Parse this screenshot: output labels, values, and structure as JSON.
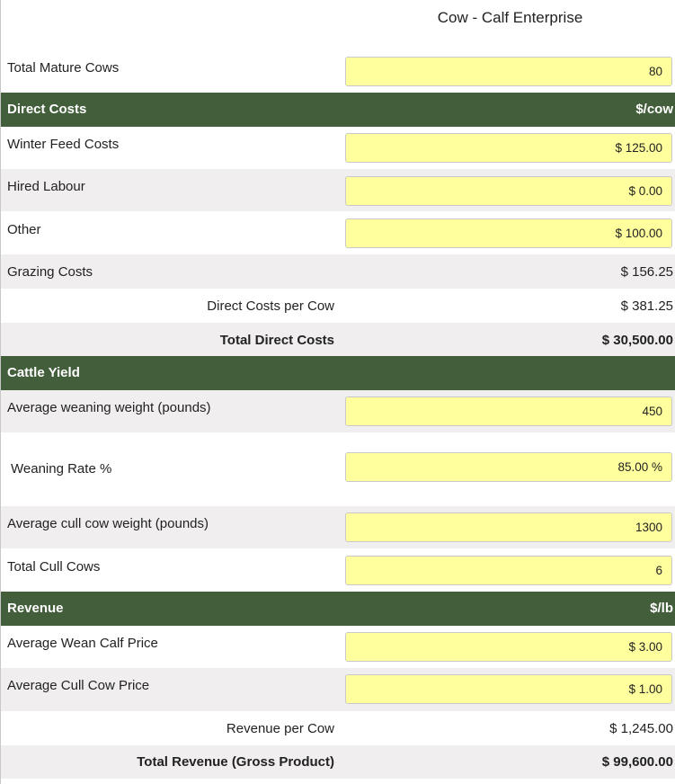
{
  "title": "Cow - Calf Enterprise",
  "total_mature_cows": {
    "label": "Total Mature Cows",
    "value": "80"
  },
  "direct_costs": {
    "header": "Direct Costs",
    "unit": "$/cow",
    "winter_feed": {
      "label": "Winter Feed Costs",
      "value": "$ 125.00"
    },
    "hired_labour": {
      "label": "Hired Labour",
      "value": "$ 0.00"
    },
    "other": {
      "label": "Other",
      "value": "$ 100.00"
    },
    "grazing": {
      "label": "Grazing Costs",
      "value": "$ 156.25"
    },
    "per_cow": {
      "label": "Direct Costs per Cow",
      "value": "$ 381.25"
    },
    "total": {
      "label": "Total Direct Costs",
      "value": "$ 30,500.00"
    }
  },
  "cattle_yield": {
    "header": "Cattle Yield",
    "weaning_weight": {
      "label": "Average weaning weight (pounds)",
      "value": "450"
    },
    "weaning_rate": {
      "label": "Weaning Rate %",
      "value": "85.00 %"
    },
    "cull_weight": {
      "label": "Average cull cow weight (pounds)",
      "value": "1300"
    },
    "cull_cows": {
      "label": "Total Cull Cows",
      "value": "6"
    }
  },
  "revenue": {
    "header": "Revenue",
    "unit": "$/lb",
    "wean_calf_price": {
      "label": "Average Wean Calf Price",
      "value": "$ 3.00"
    },
    "cull_cow_price": {
      "label": "Average Cull Cow Price",
      "value": "$ 1.00"
    },
    "per_cow": {
      "label": "Revenue per Cow",
      "value": "$ 1,245.00"
    },
    "total": {
      "label": "Total Revenue (Gross Product)",
      "value": "$ 99,600.00"
    }
  },
  "colors": {
    "header_bg": "#435e3a",
    "input_bg": "#ffff9e",
    "alt_row_bg": "#f0eeee"
  }
}
